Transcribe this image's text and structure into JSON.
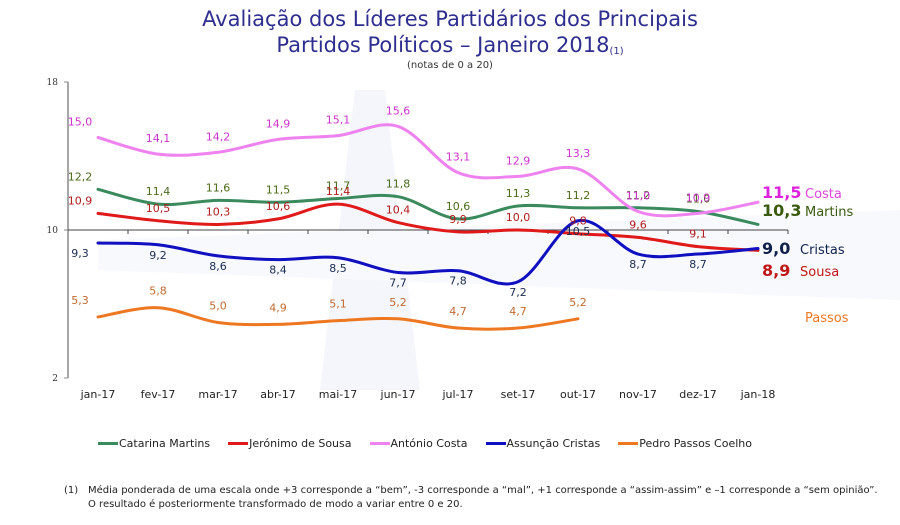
{
  "chart_data": {
    "type": "line",
    "title_line1": "Avaliação dos Líderes Partidários dos Principais",
    "title_line2": "Partidos Políticos – Janeiro 2018",
    "title_note": "(1)",
    "subtitle": "(notas de 0 a 20)",
    "xlabel": "",
    "ylabel": "",
    "ylim": [
      2,
      18
    ],
    "y_ticks": [
      "18",
      "10",
      "2"
    ],
    "y_tick_values": [
      18,
      10,
      2
    ],
    "categories": [
      "jan-17",
      "fev-17",
      "mar-17",
      "abr-17",
      "mai-17",
      "jun-17",
      "jul-17",
      "set-17",
      "out-17",
      "nov-17",
      "dez-17",
      "jan-18"
    ],
    "grid": false,
    "legend_position": "bottom",
    "series": [
      {
        "name": "Catarina Martins",
        "short": "Martins",
        "color": "#3a8a5e",
        "label_color": "#4a6b1a",
        "values": [
          12.2,
          11.4,
          11.6,
          11.5,
          11.7,
          11.8,
          10.6,
          11.3,
          11.2,
          11.2,
          11.0,
          10.3
        ],
        "labels": [
          "12,2",
          "11,4",
          "11,6",
          "11,5",
          "11,7",
          "11,8",
          "10,6",
          "11,3",
          "11,2",
          "11,2",
          "11,0",
          ""
        ],
        "end_value": "10,3"
      },
      {
        "name": "Jerónimo de Sousa",
        "short": "Sousa",
        "color": "#e01a1a",
        "label_color": "#b01c1c",
        "values": [
          10.9,
          10.5,
          10.3,
          10.6,
          11.4,
          10.4,
          9.9,
          10.0,
          9.8,
          9.6,
          9.1,
          8.9
        ],
        "labels": [
          "10,9",
          "10,5",
          "10,3",
          "10,6",
          "11,4",
          "10,4",
          "9,9",
          "10,0",
          "9,8",
          "9,6",
          "9,1",
          ""
        ],
        "end_value": "8,9"
      },
      {
        "name": "António Costa",
        "short": "Costa",
        "color": "#ee82ee",
        "label_color": "#cc33cc",
        "values": [
          15.0,
          14.1,
          14.2,
          14.9,
          15.1,
          15.6,
          13.1,
          12.9,
          13.3,
          11.0,
          10.9,
          11.5
        ],
        "labels": [
          "15,0",
          "14,1",
          "14,2",
          "14,9",
          "15,1",
          "15,6",
          "13,1",
          "12,9",
          "13,3",
          "11,0",
          "10,9",
          ""
        ],
        "end_value": "11,5"
      },
      {
        "name": "Assunção Cristas",
        "short": "Cristas",
        "color": "#1010c0",
        "label_color": "#1a2a50",
        "values": [
          9.3,
          9.2,
          8.6,
          8.4,
          8.5,
          7.7,
          7.8,
          7.2,
          10.5,
          8.7,
          8.7,
          9.0
        ],
        "labels": [
          "9,3",
          "9,2",
          "8,6",
          "8,4",
          "8,5",
          "7,7",
          "7,8",
          "7,2",
          "10,5",
          "8,7",
          "8,7",
          ""
        ],
        "end_value": "9,0"
      },
      {
        "name": "Pedro Passos Coelho",
        "short": "Passos",
        "color": "#ee7722",
        "label_color": "#c06a30",
        "values": [
          5.3,
          5.8,
          5.0,
          4.9,
          5.1,
          5.2,
          4.7,
          4.7,
          5.2,
          null,
          null,
          null
        ],
        "labels": [
          "5,3",
          "5,8",
          "5,0",
          "4,9",
          "5,1",
          "5,2",
          "4,7",
          "4,7",
          "5,2",
          "",
          "",
          ""
        ],
        "end_value": ""
      }
    ]
  },
  "footnote": {
    "marker": "(1)",
    "line1": "Média ponderada de uma escala onde +3 corresponde a “bem”, -3 corresponde a “mal”, +1 corresponde a “assim-assim” e –1 corresponde a “sem opinião”.",
    "line2": "O resultado é posteriormente transformado de modo a variar entre 0 e 20."
  }
}
